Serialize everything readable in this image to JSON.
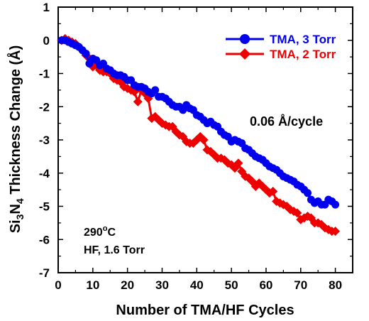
{
  "chart_data": {
    "type": "line",
    "xlabel": "Number of TMA/HF Cycles",
    "ylabel": {
      "part1": "Si",
      "sub1": "3",
      "part2": "N",
      "sub2": "4",
      "part3": " Thickness Change (Å)"
    },
    "xlim": [
      0,
      85
    ],
    "ylim": [
      -7,
      1
    ],
    "xticks": [
      0,
      10,
      20,
      30,
      40,
      50,
      60,
      70,
      80
    ],
    "yticks": [
      1,
      0,
      -1,
      -2,
      -3,
      -4,
      -5,
      -6,
      -7
    ],
    "grid": false,
    "legend_position": "top-right",
    "series": [
      {
        "name": "TMA, 3 Torr",
        "color": "#0000ee",
        "marker": "circle",
        "x": [
          1,
          2,
          3,
          4,
          5,
          6,
          7,
          8,
          9,
          10,
          11,
          12,
          13,
          14,
          15,
          16,
          17,
          18,
          19,
          20,
          21,
          22,
          23,
          24,
          25,
          26,
          27,
          28,
          29,
          30,
          31,
          32,
          33,
          34,
          35,
          36,
          37,
          38,
          39,
          40,
          41,
          42,
          43,
          44,
          45,
          46,
          47,
          48,
          49,
          50,
          51,
          52,
          53,
          54,
          55,
          56,
          57,
          58,
          59,
          60,
          61,
          62,
          63,
          64,
          65,
          66,
          67,
          68,
          69,
          70,
          71,
          72,
          73,
          74,
          75,
          76,
          77,
          78,
          79,
          80
        ],
        "y": [
          0,
          0,
          -0.05,
          -0.1,
          -0.15,
          -0.2,
          -0.3,
          -0.4,
          -0.7,
          -0.55,
          -0.6,
          -0.75,
          -0.7,
          -0.85,
          -0.9,
          -1.0,
          -1.05,
          -1.05,
          -1.1,
          -1.2,
          -1.2,
          -1.35,
          -1.4,
          -1.4,
          -1.45,
          -1.55,
          -1.6,
          -1.5,
          -1.7,
          -1.7,
          -1.75,
          -1.85,
          -1.95,
          -2.0,
          -2.0,
          -2.1,
          -1.95,
          -2.05,
          -2.1,
          -2.25,
          -2.3,
          -2.4,
          -2.5,
          -2.45,
          -2.55,
          -2.6,
          -2.75,
          -2.85,
          -2.9,
          -3.05,
          -3.0,
          -3.05,
          -3.1,
          -3.25,
          -3.3,
          -3.4,
          -3.5,
          -3.55,
          -3.6,
          -3.7,
          -3.8,
          -3.85,
          -3.9,
          -4.0,
          -4.1,
          -4.15,
          -4.2,
          -4.25,
          -4.35,
          -4.4,
          -4.5,
          -4.6,
          -4.8,
          -4.9,
          -4.85,
          -4.95,
          -4.95,
          -4.8,
          -4.85,
          -4.95
        ]
      },
      {
        "name": "TMA, 2 Torr",
        "color": "#ee0000",
        "marker": "diamond",
        "x": [
          1,
          2,
          3,
          4,
          5,
          6,
          7,
          8,
          9,
          10,
          11,
          12,
          13,
          14,
          15,
          16,
          17,
          18,
          19,
          20,
          21,
          22,
          23,
          24,
          25,
          26,
          27,
          28,
          29,
          30,
          31,
          32,
          33,
          34,
          35,
          36,
          37,
          38,
          39,
          40,
          41,
          42,
          43,
          44,
          45,
          46,
          47,
          48,
          49,
          50,
          51,
          52,
          53,
          54,
          55,
          56,
          57,
          58,
          59,
          60,
          61,
          62,
          63,
          64,
          65,
          66,
          67,
          68,
          69,
          70,
          71,
          72,
          73,
          74,
          75,
          76,
          77,
          78,
          79,
          80
        ],
        "y": [
          0,
          0.05,
          0,
          -0.05,
          -0.1,
          -0.2,
          -0.3,
          -0.45,
          -0.55,
          -0.8,
          -0.75,
          -0.9,
          -0.95,
          -0.95,
          -1.0,
          -1.15,
          -1.2,
          -1.25,
          -1.4,
          -1.45,
          -1.5,
          -1.55,
          -1.85,
          -1.5,
          -1.6,
          -1.75,
          -2.35,
          -2.3,
          -2.4,
          -2.5,
          -2.55,
          -2.6,
          -2.6,
          -2.75,
          -2.85,
          -2.9,
          -3.05,
          -3.1,
          -3.1,
          -3.0,
          -2.9,
          -3.0,
          -3.3,
          -3.35,
          -3.45,
          -3.55,
          -3.55,
          -3.6,
          -3.7,
          -3.75,
          -3.85,
          -3.7,
          -3.95,
          -4.1,
          -4.15,
          -4.25,
          -4.4,
          -4.3,
          -4.4,
          -4.5,
          -4.6,
          -4.55,
          -4.85,
          -4.9,
          -4.95,
          -5.0,
          -5.1,
          -5.15,
          -5.2,
          -5.4,
          -5.35,
          -5.3,
          -5.35,
          -5.5,
          -5.5,
          -5.55,
          -5.65,
          -5.7,
          -5.75,
          -5.75
        ]
      }
    ],
    "annotations": {
      "rate": "0.06 Å/cycle",
      "temperature_value": "290",
      "temperature_sup": "o",
      "temperature_unit": "C",
      "conditions": "HF, 1.6 Torr"
    }
  }
}
